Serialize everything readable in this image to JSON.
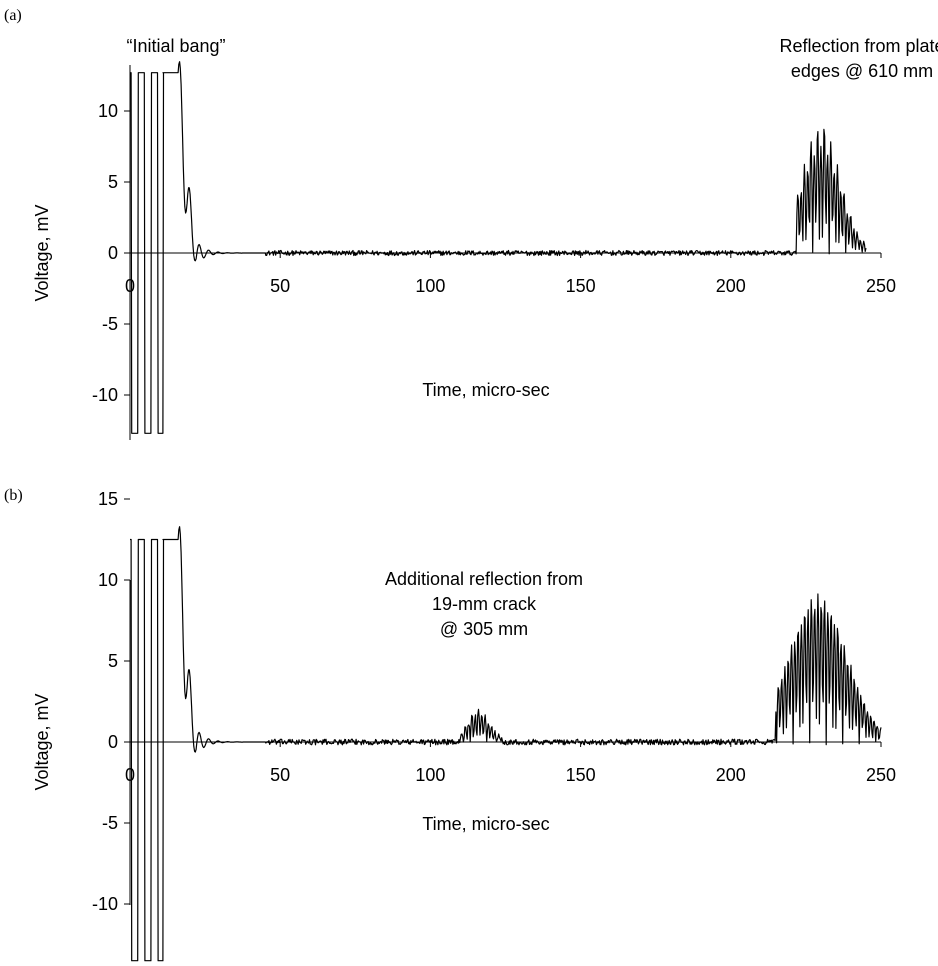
{
  "chart_data": [
    {
      "panel_label": "(a)",
      "type": "line",
      "xlabel": "Time, micro-sec",
      "ylabel": "Voltage, mV",
      "xlim": [
        0,
        250
      ],
      "ylim": [
        -13,
        13
      ],
      "x_ticks": [
        "0",
        "50",
        "100",
        "150",
        "200",
        "250"
      ],
      "y_ticks": [
        "10",
        "5",
        "0",
        "-5",
        "-10"
      ],
      "annotations": [
        "“Initial bang”",
        "Reflection from plate",
        "edges @ 610 mm"
      ],
      "features": {
        "initial_bang": {
          "t_start": 0,
          "t_end": 16,
          "level": 12.7
        },
        "decay": {
          "t_start": 16,
          "t_end": 45
        },
        "plate_edge_reflection": {
          "t_center": 230,
          "t_start": 222,
          "t_end": 245,
          "max": 7.5,
          "min": -9.1
        }
      },
      "series": [
        {
          "values": [
            [
              0,
              12.7
            ],
            [
              10,
              -12.7
            ],
            [
              16,
              12.7
            ],
            [
              18,
              11
            ],
            [
              21,
              6
            ],
            [
              22,
              -1.7
            ],
            [
              24,
              3.4
            ],
            [
              30,
              1.8
            ],
            [
              40,
              0
            ],
            [
              222,
              0
            ],
            [
              230,
              7.5
            ],
            [
              231,
              -9.1
            ],
            [
              245,
              0
            ]
          ]
        }
      ]
    },
    {
      "panel_label": "(b)",
      "type": "line",
      "xlabel": "Time, micro-sec",
      "ylabel": "Voltage, mV",
      "xlim": [
        0,
        250
      ],
      "ylim": [
        -15,
        15
      ],
      "x_ticks": [
        "0",
        "50",
        "100",
        "150",
        "200",
        "250"
      ],
      "y_ticks": [
        "15",
        "10",
        "5",
        "0",
        "-5",
        "-10",
        "-15"
      ],
      "annotations": [
        "Additional reflection from",
        "19-mm crack",
        "@ 305 mm"
      ],
      "features": {
        "initial_bang": {
          "t_start": 0,
          "t_end": 16,
          "level": 12.5,
          "low": -13.5
        },
        "decay": {
          "t_start": 16,
          "t_end": 45
        },
        "crack_reflection": {
          "t_center": 116,
          "t_start": 110,
          "t_end": 124,
          "max": 1.9,
          "min": -1.7
        },
        "plate_edge_reflection": {
          "t_center": 229,
          "t_start": 215,
          "t_end": 250,
          "max": 9.1,
          "min": -8.7
        }
      },
      "series": [
        {
          "values": [
            [
              0,
              12.5
            ],
            [
              10,
              -13.5
            ],
            [
              16,
              12.5
            ],
            [
              18,
              11
            ],
            [
              21,
              5.8
            ],
            [
              22,
              -1.2
            ],
            [
              24,
              3.8
            ],
            [
              30,
              2
            ],
            [
              40,
              0
            ],
            [
              110,
              0
            ],
            [
              116,
              1.9
            ],
            [
              117,
              -1.7
            ],
            [
              124,
              0
            ],
            [
              215,
              0
            ],
            [
              228,
              5.8
            ],
            [
              229,
              9.1
            ],
            [
              230,
              -8.7
            ],
            [
              250,
              0
            ]
          ]
        }
      ]
    }
  ]
}
